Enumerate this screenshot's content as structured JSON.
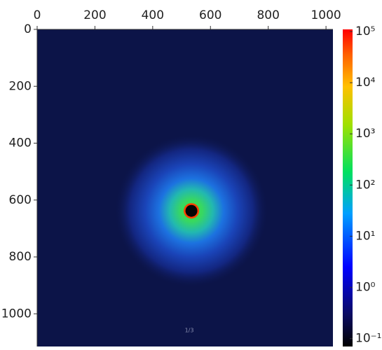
{
  "chart_data": {
    "type": "image",
    "xlim": [
      0,
      1024
    ],
    "xticks": [
      0,
      200,
      400,
      600,
      800,
      1000
    ],
    "ylim": [
      0,
      1115
    ],
    "yticks": [
      0,
      200,
      400,
      600,
      800,
      1000
    ],
    "beam_center": [
      534,
      638
    ],
    "colorbar": {
      "scale": "log",
      "lim": [
        0.07,
        110000
      ],
      "ticks": [
        {
          "value": 100000,
          "label": "10⁵"
        },
        {
          "value": 10000,
          "label": "10⁴"
        },
        {
          "value": 1000,
          "label": "10³"
        },
        {
          "value": 100,
          "label": "10²"
        },
        {
          "value": 10,
          "label": "10¹"
        },
        {
          "value": 1,
          "label": "10⁰"
        },
        {
          "value": 0.1,
          "label": "10⁻¹"
        }
      ]
    },
    "page_indicator": "1/3"
  }
}
